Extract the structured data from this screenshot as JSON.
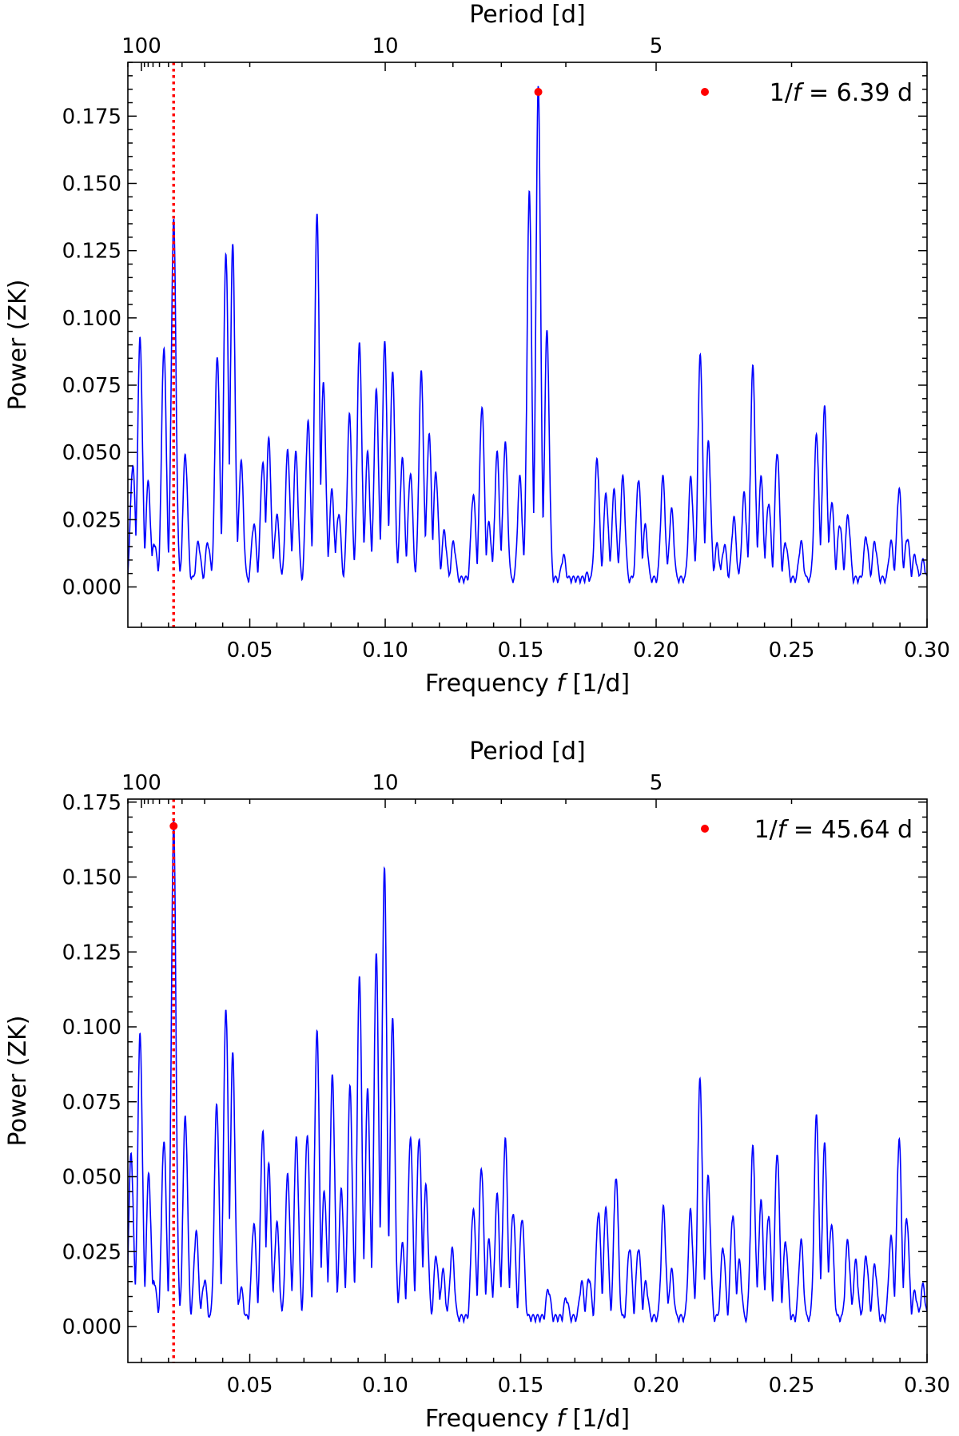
{
  "chart_data": [
    {
      "type": "line",
      "title": "",
      "xlabel": "Frequency f [1/d]",
      "ylabel": "Power (ZK)",
      "top_xlabel": "Period [d]",
      "xlim": [
        0.005,
        0.3
      ],
      "ylim": [
        -0.015,
        0.195
      ],
      "x_ticks": [
        0.05,
        0.1,
        0.15,
        0.2,
        0.25,
        0.3
      ],
      "x_tick_labels": [
        "0.05",
        "0.10",
        "0.15",
        "0.20",
        "0.25",
        "0.30"
      ],
      "y_ticks": [
        0.0,
        0.025,
        0.05,
        0.075,
        0.1,
        0.125,
        0.15,
        0.175
      ],
      "y_tick_labels": [
        "0.000",
        "0.025",
        "0.050",
        "0.075",
        "0.100",
        "0.125",
        "0.150",
        "0.175"
      ],
      "top_ticks": [
        100,
        10,
        5
      ],
      "top_tick_labels": [
        "100",
        "10",
        "5"
      ],
      "grid": false,
      "legend_position": "top-right",
      "legend": {
        "label": "1/f = 6.39 d",
        "prefix": "1/",
        "italic": "f",
        "suffix": " = 6.39 d"
      },
      "vline_x": 0.0219,
      "marker": {
        "x": 0.1565,
        "y": 0.184
      },
      "series": [
        {
          "color": "#0000ff",
          "peaks": [
            [
              0.0068,
              0.044
            ],
            [
              0.0095,
              0.091
            ],
            [
              0.0125,
              0.037
            ],
            [
              0.0148,
              0.015
            ],
            [
              0.0183,
              0.088
            ],
            [
              0.0219,
              0.135
            ],
            [
              0.0262,
              0.048
            ],
            [
              0.031,
              0.015
            ],
            [
              0.0345,
              0.015
            ],
            [
              0.038,
              0.085
            ],
            [
              0.0412,
              0.123
            ],
            [
              0.0437,
              0.125
            ],
            [
              0.0468,
              0.045
            ],
            [
              0.0515,
              0.022
            ],
            [
              0.0548,
              0.045
            ],
            [
              0.057,
              0.053
            ],
            [
              0.06,
              0.025
            ],
            [
              0.064,
              0.049
            ],
            [
              0.067,
              0.048
            ],
            [
              0.0715,
              0.06
            ],
            [
              0.0748,
              0.137
            ],
            [
              0.0772,
              0.074
            ],
            [
              0.0803,
              0.034
            ],
            [
              0.0828,
              0.026
            ],
            [
              0.0868,
              0.062
            ],
            [
              0.0905,
              0.089
            ],
            [
              0.0935,
              0.048
            ],
            [
              0.0967,
              0.071
            ],
            [
              0.0998,
              0.089
            ],
            [
              0.1027,
              0.079
            ],
            [
              0.1063,
              0.046
            ],
            [
              0.1093,
              0.041
            ],
            [
              0.1133,
              0.078
            ],
            [
              0.1162,
              0.055
            ],
            [
              0.1187,
              0.041
            ],
            [
              0.1218,
              0.019
            ],
            [
              0.1252,
              0.015
            ],
            [
              0.1325,
              0.033
            ],
            [
              0.1357,
              0.066
            ],
            [
              0.1383,
              0.022
            ],
            [
              0.1413,
              0.048
            ],
            [
              0.1443,
              0.052
            ],
            [
              0.1497,
              0.039
            ],
            [
              0.1532,
              0.145
            ],
            [
              0.1565,
              0.184
            ],
            [
              0.1597,
              0.093
            ],
            [
              0.1658,
              0.01
            ],
            [
              0.1745,
              0.003
            ],
            [
              0.1782,
              0.046
            ],
            [
              0.1815,
              0.033
            ],
            [
              0.1845,
              0.034
            ],
            [
              0.1877,
              0.039
            ],
            [
              0.1935,
              0.039
            ],
            [
              0.196,
              0.021
            ],
            [
              0.2025,
              0.039
            ],
            [
              0.2057,
              0.027
            ],
            [
              0.2128,
              0.039
            ],
            [
              0.2163,
              0.085
            ],
            [
              0.2193,
              0.052
            ],
            [
              0.2225,
              0.014
            ],
            [
              0.2252,
              0.014
            ],
            [
              0.2287,
              0.024
            ],
            [
              0.2325,
              0.033
            ],
            [
              0.2357,
              0.08
            ],
            [
              0.2387,
              0.039
            ],
            [
              0.2415,
              0.03
            ],
            [
              0.2447,
              0.049
            ],
            [
              0.2478,
              0.015
            ],
            [
              0.2535,
              0.015
            ],
            [
              0.2592,
              0.055
            ],
            [
              0.2622,
              0.065
            ],
            [
              0.2648,
              0.03
            ],
            [
              0.2678,
              0.022
            ],
            [
              0.2708,
              0.025
            ],
            [
              0.2775,
              0.017
            ],
            [
              0.2807,
              0.015
            ],
            [
              0.2867,
              0.015
            ],
            [
              0.2897,
              0.035
            ],
            [
              0.2927,
              0.017
            ],
            [
              0.2955,
              0.01
            ],
            [
              0.2985,
              0.008
            ]
          ]
        }
      ]
    },
    {
      "type": "line",
      "title": "",
      "xlabel": "Frequency f [1/d]",
      "ylabel": "Power (ZK)",
      "top_xlabel": "Period [d]",
      "xlim": [
        0.005,
        0.3
      ],
      "ylim": [
        -0.012,
        0.176
      ],
      "x_ticks": [
        0.05,
        0.1,
        0.15,
        0.2,
        0.25,
        0.3
      ],
      "x_tick_labels": [
        "0.05",
        "0.10",
        "0.15",
        "0.20",
        "0.25",
        "0.30"
      ],
      "y_ticks": [
        0.0,
        0.025,
        0.05,
        0.075,
        0.1,
        0.125,
        0.15,
        0.175
      ],
      "y_tick_labels": [
        "0.000",
        "0.025",
        "0.050",
        "0.075",
        "0.100",
        "0.125",
        "0.150",
        "0.175"
      ],
      "top_ticks": [
        100,
        10,
        5
      ],
      "top_tick_labels": [
        "100",
        "10",
        "5"
      ],
      "grid": false,
      "legend_position": "top-right",
      "legend": {
        "label": "1/f = 45.64 d",
        "prefix": "1/",
        "italic": "f",
        "suffix": " = 45.64 d"
      },
      "vline_x": 0.0219,
      "marker": {
        "x": 0.0219,
        "y": 0.167
      },
      "series": [
        {
          "color": "#0000ff",
          "peaks": [
            [
              0.0062,
              0.056
            ],
            [
              0.0095,
              0.096
            ],
            [
              0.0127,
              0.049
            ],
            [
              0.0147,
              0.014
            ],
            [
              0.0183,
              0.061
            ],
            [
              0.0219,
              0.167
            ],
            [
              0.0262,
              0.069
            ],
            [
              0.0302,
              0.03
            ],
            [
              0.0333,
              0.014
            ],
            [
              0.0378,
              0.073
            ],
            [
              0.0412,
              0.105
            ],
            [
              0.0437,
              0.089
            ],
            [
              0.0468,
              0.011
            ],
            [
              0.0515,
              0.033
            ],
            [
              0.0548,
              0.064
            ],
            [
              0.057,
              0.052
            ],
            [
              0.06,
              0.033
            ],
            [
              0.064,
              0.049
            ],
            [
              0.0672,
              0.061
            ],
            [
              0.0712,
              0.063
            ],
            [
              0.0748,
              0.097
            ],
            [
              0.0775,
              0.044
            ],
            [
              0.0805,
              0.082
            ],
            [
              0.0838,
              0.044
            ],
            [
              0.087,
              0.078
            ],
            [
              0.0905,
              0.115
            ],
            [
              0.0935,
              0.077
            ],
            [
              0.0967,
              0.122
            ],
            [
              0.0997,
              0.151
            ],
            [
              0.1027,
              0.102
            ],
            [
              0.1063,
              0.026
            ],
            [
              0.1093,
              0.062
            ],
            [
              0.1125,
              0.062
            ],
            [
              0.115,
              0.045
            ],
            [
              0.1188,
              0.022
            ],
            [
              0.1213,
              0.017
            ],
            [
              0.1247,
              0.024
            ],
            [
              0.1325,
              0.038
            ],
            [
              0.1355,
              0.052
            ],
            [
              0.1383,
              0.027
            ],
            [
              0.1413,
              0.042
            ],
            [
              0.1443,
              0.061
            ],
            [
              0.1472,
              0.037
            ],
            [
              0.1505,
              0.035
            ],
            [
              0.1602,
              0.011
            ],
            [
              0.1668,
              0.008
            ],
            [
              0.1725,
              0.013
            ],
            [
              0.1752,
              0.015
            ],
            [
              0.1787,
              0.037
            ],
            [
              0.1815,
              0.038
            ],
            [
              0.1852,
              0.049
            ],
            [
              0.1902,
              0.025
            ],
            [
              0.1935,
              0.025
            ],
            [
              0.1962,
              0.013
            ],
            [
              0.2027,
              0.038
            ],
            [
              0.2057,
              0.017
            ],
            [
              0.2127,
              0.037
            ],
            [
              0.2162,
              0.081
            ],
            [
              0.2192,
              0.048
            ],
            [
              0.2247,
              0.025
            ],
            [
              0.2283,
              0.036
            ],
            [
              0.2307,
              0.02
            ],
            [
              0.2357,
              0.058
            ],
            [
              0.2387,
              0.04
            ],
            [
              0.2415,
              0.036
            ],
            [
              0.2447,
              0.057
            ],
            [
              0.2478,
              0.027
            ],
            [
              0.2535,
              0.027
            ],
            [
              0.2592,
              0.069
            ],
            [
              0.2622,
              0.059
            ],
            [
              0.2647,
              0.033
            ],
            [
              0.2707,
              0.027
            ],
            [
              0.2737,
              0.02
            ],
            [
              0.2775,
              0.022
            ],
            [
              0.2807,
              0.019
            ],
            [
              0.2867,
              0.028
            ],
            [
              0.2897,
              0.061
            ],
            [
              0.2925,
              0.035
            ],
            [
              0.2955,
              0.01
            ],
            [
              0.2985,
              0.012
            ]
          ]
        }
      ]
    }
  ]
}
